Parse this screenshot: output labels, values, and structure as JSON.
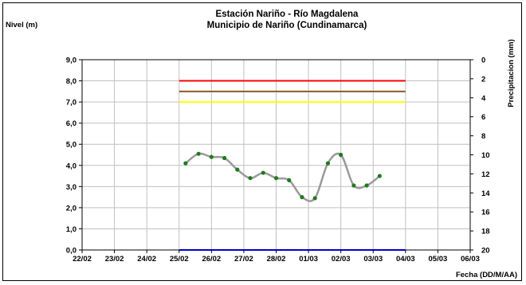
{
  "chart_data": {
    "type": "line",
    "title": "Estación Nariño  - Río Magdalena",
    "subtitle": "Municipio de Nariño (Cundinamarca)",
    "ylabel": "Nivel (m)",
    "y2label": "Precipitacion (mm)",
    "xlabel": "Fecha (DD/M/AA)",
    "ylim": [
      0,
      9
    ],
    "y2lim": [
      0,
      20
    ],
    "y2_inverted": true,
    "x_ticks": [
      "22/02",
      "23/02",
      "24/02",
      "25/02",
      "26/02",
      "27/02",
      "28/02",
      "01/03",
      "02/03",
      "03/03",
      "04/03",
      "05/03",
      "06/03"
    ],
    "y_ticks": [
      "0,0",
      "1,0",
      "2,0",
      "3,0",
      "4,0",
      "5,0",
      "6,0",
      "7,0",
      "8,0",
      "9,0"
    ],
    "y2_ticks": [
      "0",
      "2",
      "4",
      "6",
      "8",
      "10",
      "12",
      "14",
      "16",
      "18",
      "20"
    ],
    "grid": true,
    "series": [
      {
        "x": [
          25.2,
          25.6,
          26.0,
          26.4,
          26.8,
          27.2,
          27.6,
          28.0,
          28.4,
          28.8,
          29.2,
          29.6,
          30.0,
          30.4,
          30.8,
          31.2
        ],
        "values": [
          4.1,
          4.55,
          4.4,
          4.35,
          3.8,
          3.4,
          3.65,
          3.4,
          3.3,
          2.5,
          2.45,
          4.1,
          4.5,
          3.05,
          3.05,
          3.5
        ],
        "color": "#9a9a9a",
        "marker_color": "#1f7a1f"
      }
    ],
    "reference_lines": [
      {
        "y": 8.0,
        "x_from": 25.0,
        "x_to": 32.0,
        "color": "#ff0000"
      },
      {
        "y": 7.5,
        "x_from": 25.0,
        "x_to": 32.0,
        "color": "#8b5a2b"
      },
      {
        "y": 7.0,
        "x_from": 25.0,
        "x_to": 32.0,
        "color": "#ffff00"
      },
      {
        "y": 0.0,
        "x_from": 25.0,
        "x_to": 32.0,
        "color": "#0000cc"
      }
    ]
  }
}
